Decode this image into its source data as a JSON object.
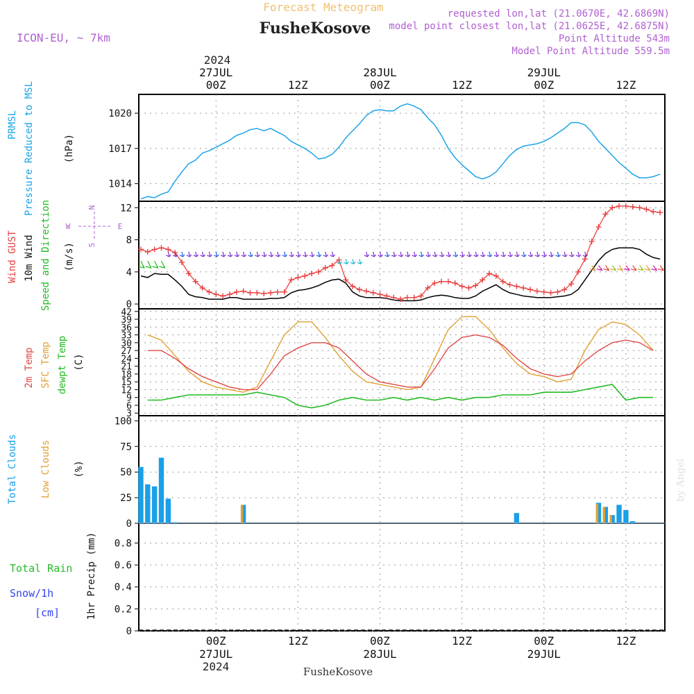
{
  "header": {
    "product_title": "Forecast Meteogram",
    "station": "FusheKosove",
    "model": "ICON-EU, ~ 7km",
    "requested_point": "requested lon,lat (21.0670E, 42.6869N)",
    "model_point": "model point closest lon,lat (21.0625E, 42.6875N)",
    "point_altitude": "Point Altitude 543m",
    "model_altitude": "Model Point Altitude 559.5m",
    "footer_station": "FusheKosove",
    "credit": "by Angel"
  },
  "colors": {
    "pressure": "#1aa3e8",
    "gust": "#e84040",
    "wind": "#000000",
    "temp2m": "#e04848",
    "sfc_temp": "#e0a030",
    "dewpoint": "#22bb22",
    "total_clouds": "#1a9fe8",
    "low_clouds": "#e0a030",
    "rain": "#22bb22",
    "snow": "#3344ee",
    "meta_purple": "#b060d0",
    "title_orange": "#f0c070"
  },
  "time_axis": {
    "top_year": "2024",
    "bottom_year": "2024",
    "ticks": [
      {
        "hour": 0,
        "label": "00Z",
        "date": "27JUL"
      },
      {
        "hour": 12,
        "label": "12Z",
        "date": ""
      },
      {
        "hour": 24,
        "label": "00Z",
        "date": "28JUL"
      },
      {
        "hour": 36,
        "label": "12Z",
        "date": ""
      },
      {
        "hour": 48,
        "label": "00Z",
        "date": "29JUL"
      },
      {
        "hour": 60,
        "label": "12Z",
        "date": ""
      }
    ],
    "hour_range": [
      -11.3,
      65.7
    ]
  },
  "panels": {
    "pressure": {
      "label_lines": [
        "PRMSL",
        "Pressure Reduced to MSL"
      ],
      "unit": "(hPa)",
      "ticks": [
        "1014",
        "1017",
        "1020"
      ]
    },
    "wind": {
      "label_lines": [
        "Wind GUST",
        "10m Wind",
        "Speed and Direction"
      ],
      "unit": "(m/s)",
      "ticks": [
        "0",
        "4",
        "8",
        "12"
      ],
      "compass": {
        "n": "N",
        "s": "S",
        "w": "W",
        "e": "E"
      }
    },
    "temp": {
      "label_lines": [
        "2m Temp",
        "SFC Temp",
        "dewpt Temp"
      ],
      "unit": "(C)",
      "ticks": [
        "3",
        "6",
        "9",
        "12",
        "15",
        "18",
        "21",
        "24",
        "27",
        "30",
        "33",
        "36",
        "39",
        "42"
      ]
    },
    "clouds": {
      "label_lines": [
        "Total Clouds",
        "Low Clouds"
      ],
      "unit": "(%)",
      "ticks": [
        "0",
        "25",
        "50",
        "75",
        "100"
      ]
    },
    "precip": {
      "label_lines": [
        "Total  Rain",
        "Snow/1h",
        "[cm]"
      ],
      "unit": "1hr Precip (mm)",
      "ticks": [
        "0",
        "0.2",
        "0.4",
        "0.6",
        "0.8"
      ]
    }
  },
  "chart_data": [
    {
      "type": "line",
      "title": "PRMSL Pressure Reduced to MSL",
      "ylabel": "(hPa)",
      "ylim": [
        1012.5,
        1021.6
      ],
      "series": [
        {
          "name": "PRMSL",
          "x": [
            -11,
            -10,
            -9,
            -8,
            -7,
            -6,
            -5,
            -4,
            -3,
            -2,
            -1,
            0,
            1,
            2,
            3,
            4,
            5,
            6,
            7,
            8,
            9,
            10,
            11,
            12,
            13,
            14,
            15,
            16,
            17,
            18,
            19,
            20,
            21,
            22,
            23,
            24,
            25,
            26,
            27,
            28,
            29,
            30,
            31,
            32,
            33,
            34,
            35,
            36,
            37,
            38,
            39,
            40,
            41,
            42,
            43,
            44,
            45,
            46,
            47,
            48,
            49,
            50,
            51,
            52,
            53,
            54,
            55,
            56,
            57,
            58,
            59,
            60,
            61,
            62,
            63,
            64,
            65
          ],
          "values": [
            1012.7,
            1012.9,
            1012.8,
            1013.1,
            1013.3,
            1014.2,
            1015.0,
            1015.7,
            1016.0,
            1016.6,
            1016.8,
            1017.1,
            1017.4,
            1017.7,
            1018.1,
            1018.3,
            1018.6,
            1018.7,
            1018.5,
            1018.7,
            1018.4,
            1018.1,
            1017.6,
            1017.3,
            1017.0,
            1016.6,
            1016.1,
            1016.2,
            1016.5,
            1017.1,
            1017.9,
            1018.5,
            1019.1,
            1019.8,
            1020.2,
            1020.3,
            1020.2,
            1020.2,
            1020.6,
            1020.8,
            1020.6,
            1020.3,
            1019.6,
            1019.0,
            1018.1,
            1017.0,
            1016.2,
            1015.6,
            1015.1,
            1014.6,
            1014.4,
            1014.6,
            1015.0,
            1015.7,
            1016.4,
            1016.9,
            1017.2,
            1017.3,
            1017.4,
            1017.6,
            1017.9,
            1018.3,
            1018.7,
            1019.2,
            1019.2,
            1019.0,
            1018.4,
            1017.6,
            1017.0,
            1016.4,
            1015.8,
            1015.3,
            1014.8,
            1014.5,
            1014.5,
            1014.6,
            1014.8
          ]
        }
      ]
    },
    {
      "type": "line",
      "title": "Wind GUST / 10m Wind Speed and Direction",
      "ylabel": "(m/s)",
      "ylim": [
        -0.6,
        12.8
      ],
      "series": [
        {
          "name": "Wind GUST",
          "x": [
            -11,
            -10,
            -9,
            -8,
            -7,
            -6,
            -5,
            -4,
            -3,
            -2,
            -1,
            0,
            1,
            2,
            3,
            4,
            5,
            6,
            7,
            8,
            9,
            10,
            11,
            12,
            13,
            14,
            15,
            16,
            17,
            18,
            19,
            20,
            21,
            22,
            23,
            24,
            25,
            26,
            27,
            28,
            29,
            30,
            31,
            32,
            33,
            34,
            35,
            36,
            37,
            38,
            39,
            40,
            41,
            42,
            43,
            44,
            45,
            46,
            47,
            48,
            49,
            50,
            51,
            52,
            53,
            54,
            55,
            56,
            57,
            58,
            59,
            60,
            61,
            62,
            63,
            64,
            65
          ],
          "values": [
            6.8,
            6.5,
            6.8,
            7.0,
            6.8,
            6.4,
            5.2,
            3.8,
            2.8,
            2.0,
            1.5,
            1.2,
            1.0,
            1.2,
            1.5,
            1.6,
            1.4,
            1.4,
            1.3,
            1.4,
            1.5,
            1.5,
            3.0,
            3.3,
            3.5,
            3.8,
            4.0,
            4.5,
            4.8,
            5.5,
            3.0,
            2.2,
            1.8,
            1.6,
            1.4,
            1.2,
            1.0,
            0.8,
            0.6,
            0.8,
            0.8,
            1.0,
            2.0,
            2.6,
            2.8,
            2.8,
            2.6,
            2.2,
            2.0,
            2.3,
            3.0,
            3.8,
            3.5,
            2.8,
            2.4,
            2.2,
            2.0,
            1.8,
            1.6,
            1.5,
            1.4,
            1.5,
            1.8,
            2.5,
            4.0,
            5.6,
            7.8,
            9.6,
            11.2,
            12.0,
            12.2,
            12.2,
            12.1,
            12.0,
            11.8,
            11.5,
            11.4
          ]
        },
        {
          "name": "10m Wind",
          "x": [
            -11,
            -10,
            -9,
            -8,
            -7,
            -6,
            -5,
            -4,
            -3,
            -2,
            -1,
            0,
            1,
            2,
            3,
            4,
            5,
            6,
            7,
            8,
            9,
            10,
            11,
            12,
            13,
            14,
            15,
            16,
            17,
            18,
            19,
            20,
            21,
            22,
            23,
            24,
            25,
            26,
            27,
            28,
            29,
            30,
            31,
            32,
            33,
            34,
            35,
            36,
            37,
            38,
            39,
            40,
            41,
            42,
            43,
            44,
            45,
            46,
            47,
            48,
            49,
            50,
            51,
            52,
            53,
            54,
            55,
            56,
            57,
            58,
            59,
            60,
            61,
            62,
            63,
            64,
            65
          ],
          "values": [
            3.5,
            3.3,
            3.8,
            3.7,
            3.7,
            3.0,
            2.2,
            1.2,
            0.9,
            0.8,
            0.6,
            0.6,
            0.6,
            0.8,
            0.8,
            0.6,
            0.6,
            0.6,
            0.6,
            0.7,
            0.7,
            0.8,
            1.4,
            1.7,
            1.8,
            2.0,
            2.3,
            2.7,
            3.0,
            3.1,
            2.6,
            1.5,
            1.0,
            0.8,
            0.8,
            0.8,
            0.7,
            0.5,
            0.4,
            0.4,
            0.4,
            0.5,
            0.8,
            1.0,
            1.1,
            1.0,
            0.8,
            0.7,
            0.7,
            1.0,
            1.6,
            2.0,
            2.4,
            1.8,
            1.4,
            1.2,
            1.0,
            0.9,
            0.8,
            0.8,
            0.8,
            0.9,
            1.0,
            1.2,
            1.8,
            3.0,
            4.2,
            5.4,
            6.3,
            6.8,
            7.0,
            7.0,
            7.0,
            6.8,
            6.2,
            5.8,
            5.6
          ]
        }
      ]
    },
    {
      "type": "line",
      "title": "2m Temp / SFC Temp / dewpt Temp",
      "ylabel": "(C)",
      "ylim": [
        2,
        43
      ],
      "series": [
        {
          "name": "2m Temp",
          "x": [
            -10,
            -8,
            -6,
            -4,
            -2,
            0,
            2,
            4,
            6,
            8,
            10,
            12,
            14,
            16,
            18,
            20,
            22,
            24,
            26,
            28,
            30,
            32,
            34,
            36,
            38,
            40,
            42,
            44,
            46,
            48,
            50,
            52,
            54,
            56,
            58,
            60,
            62,
            64
          ],
          "values": [
            27,
            27,
            24,
            20,
            17,
            15,
            13,
            12,
            12,
            18,
            25,
            28,
            30,
            30,
            28,
            23,
            18,
            15,
            14,
            13,
            13,
            20,
            28,
            32,
            33,
            32,
            29,
            24,
            20,
            18,
            17,
            18,
            23,
            27,
            30,
            31,
            30,
            27
          ]
        },
        {
          "name": "SFC Temp",
          "x": [
            -10,
            -8,
            -6,
            -4,
            -2,
            0,
            2,
            4,
            6,
            8,
            10,
            12,
            14,
            16,
            18,
            20,
            22,
            24,
            26,
            28,
            30,
            32,
            34,
            36,
            38,
            40,
            42,
            44,
            46,
            48,
            50,
            52,
            54,
            56,
            58,
            60,
            62,
            64
          ],
          "values": [
            33,
            31,
            25,
            19,
            15,
            13,
            12,
            11,
            13,
            23,
            33,
            38,
            38,
            32,
            25,
            19,
            15,
            14,
            13,
            12,
            13,
            24,
            35,
            40,
            40,
            35,
            28,
            22,
            18,
            17,
            15,
            16,
            27,
            35,
            38,
            37,
            33,
            27
          ]
        },
        {
          "name": "dewpt Temp",
          "x": [
            -10,
            -8,
            -6,
            -4,
            -2,
            0,
            2,
            4,
            6,
            8,
            10,
            12,
            14,
            16,
            18,
            20,
            22,
            24,
            26,
            28,
            30,
            32,
            34,
            36,
            38,
            40,
            42,
            44,
            46,
            48,
            50,
            52,
            54,
            56,
            58,
            60,
            62,
            64
          ],
          "values": [
            8,
            8,
            9,
            10,
            10,
            10,
            10,
            10,
            11,
            10,
            9,
            6,
            5,
            6,
            8,
            9,
            8,
            8,
            9,
            8,
            9,
            8,
            9,
            8,
            9,
            9,
            10,
            10,
            10,
            11,
            11,
            11,
            12,
            13,
            14,
            8,
            9,
            9
          ]
        }
      ]
    },
    {
      "type": "bar",
      "title": "Total Clouds / Low Clouds",
      "ylabel": "(%)",
      "ylim": [
        0,
        105
      ],
      "series": [
        {
          "name": "Total Clouds",
          "x": [
            -11,
            -10,
            -9,
            -8,
            -7,
            -6,
            4,
            -999,
            44,
            56,
            57,
            58,
            59,
            60,
            61
          ],
          "values": [
            55,
            38,
            36,
            64,
            24,
            1,
            18,
            0,
            10,
            20,
            16,
            8,
            18,
            13,
            2
          ]
        },
        {
          "name": "Low Clouds",
          "x": [
            4,
            56,
            57,
            58
          ],
          "values": [
            18,
            19,
            16,
            8
          ]
        }
      ]
    },
    {
      "type": "bar",
      "title": "1hr Precip (mm)",
      "ylabel": "1hr Precip (mm)",
      "ylim": [
        0,
        0.98
      ],
      "series": [
        {
          "name": "Total Rain",
          "x": [],
          "values": []
        },
        {
          "name": "Snow/1h",
          "x": [],
          "values": []
        }
      ]
    }
  ]
}
